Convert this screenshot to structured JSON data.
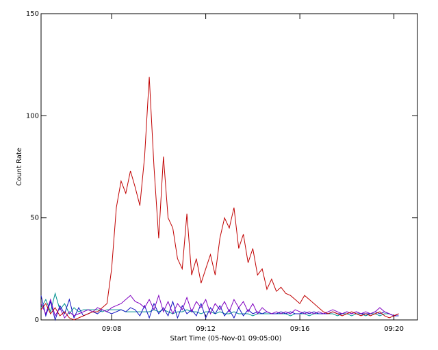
{
  "chart_data": {
    "type": "line",
    "xlabel": "Start Time (05-Nov-01 09:05:00)",
    "ylabel": "Count Rate",
    "x": [
      0,
      0.2,
      0.4,
      0.6,
      0.8,
      1,
      1.2,
      1.4,
      1.6,
      1.8,
      2,
      2.2,
      2.4,
      2.6,
      2.8,
      3,
      3.2,
      3.4,
      3.6,
      3.8,
      4,
      4.2,
      4.4,
      4.6,
      4.8,
      5,
      5.2,
      5.4,
      5.6,
      5.8,
      6,
      6.2,
      6.4,
      6.6,
      6.8,
      7,
      7.2,
      7.4,
      7.6,
      7.8,
      8,
      8.2,
      8.4,
      8.6,
      8.8,
      9,
      9.2,
      9.4,
      9.6,
      9.8,
      10,
      10.2,
      10.4,
      10.6,
      10.8,
      11,
      11.2,
      11.4,
      11.6,
      11.8,
      12,
      12.2,
      12.4,
      12.6,
      12.8,
      13,
      13.2,
      13.4,
      13.6,
      13.8,
      14,
      14.2,
      14.4,
      14.6,
      14.8,
      15,
      15.2
    ],
    "series": [
      {
        "color": "#c00000",
        "values": [
          5,
          8,
          3,
          6,
          2,
          4,
          1,
          0,
          1,
          2,
          3,
          4,
          4,
          6,
          8,
          25,
          55,
          68,
          62,
          73,
          65,
          56,
          80,
          119,
          75,
          40,
          80,
          50,
          45,
          30,
          25,
          52,
          22,
          30,
          18,
          25,
          32,
          22,
          40,
          50,
          45,
          55,
          35,
          42,
          28,
          35,
          22,
          25,
          15,
          20,
          14,
          16,
          13,
          12,
          10,
          8,
          12,
          10,
          8,
          6,
          4,
          3,
          4,
          3,
          2,
          3,
          4,
          3,
          2,
          3,
          2,
          3,
          4,
          2,
          1,
          2,
          3
        ]
      },
      {
        "color": "#8000c0",
        "values": [
          8,
          3,
          10,
          2,
          6,
          1,
          4,
          2,
          3,
          4,
          5,
          4,
          6,
          5,
          4,
          6,
          7,
          8,
          10,
          12,
          9,
          8,
          6,
          10,
          5,
          12,
          4,
          9,
          3,
          8,
          5,
          11,
          4,
          9,
          6,
          10,
          3,
          8,
          5,
          9,
          4,
          10,
          6,
          9,
          4,
          8,
          3,
          6,
          4,
          3,
          4,
          3,
          4,
          3,
          5,
          4,
          3,
          4,
          3,
          4,
          3,
          4,
          5,
          4,
          3,
          4,
          3,
          4,
          3,
          4,
          3,
          4,
          6,
          4,
          3,
          2,
          3
        ]
      },
      {
        "color": "#1010c0",
        "values": [
          12,
          2,
          9,
          0,
          7,
          3,
          10,
          1,
          6,
          2,
          3,
          4,
          3,
          5,
          4,
          3,
          4,
          5,
          4,
          6,
          5,
          2,
          7,
          1,
          8,
          3,
          6,
          2,
          9,
          1,
          7,
          3,
          5,
          2,
          8,
          1,
          6,
          3,
          7,
          2,
          5,
          1,
          6,
          2,
          5,
          3,
          4,
          3,
          4,
          3,
          3,
          4,
          3,
          4,
          3,
          3,
          4,
          3,
          4,
          3,
          3,
          3,
          4,
          3,
          3,
          4,
          3,
          4,
          3,
          3,
          3,
          4,
          3,
          4,
          3,
          2,
          2
        ]
      },
      {
        "color": "#009090",
        "values": [
          6,
          10,
          4,
          13,
          5,
          8,
          3,
          6,
          4,
          5,
          5,
          5,
          5,
          4,
          5,
          5,
          5,
          5,
          4,
          4,
          4,
          4,
          4,
          4,
          5,
          4,
          5,
          4,
          3,
          4,
          4,
          5,
          4,
          4,
          3,
          4,
          4,
          3,
          4,
          3,
          3,
          4,
          3,
          3,
          3,
          2,
          3,
          3,
          3,
          3,
          3,
          3,
          3,
          2,
          3,
          3,
          3,
          2,
          3,
          3,
          3,
          3,
          3,
          2,
          3,
          3,
          2,
          3,
          3,
          2,
          3,
          3,
          2,
          3,
          3,
          2,
          2
        ]
      }
    ],
    "xlim": [
      0,
      16
    ],
    "xticks": [
      {
        "value": 3,
        "label": "09:08"
      },
      {
        "value": 7,
        "label": "09:12"
      },
      {
        "value": 11,
        "label": "09:16"
      },
      {
        "value": 15,
        "label": "09:20"
      }
    ],
    "ylim": [
      0,
      150
    ],
    "yticks": [
      0,
      50,
      100,
      150
    ]
  }
}
